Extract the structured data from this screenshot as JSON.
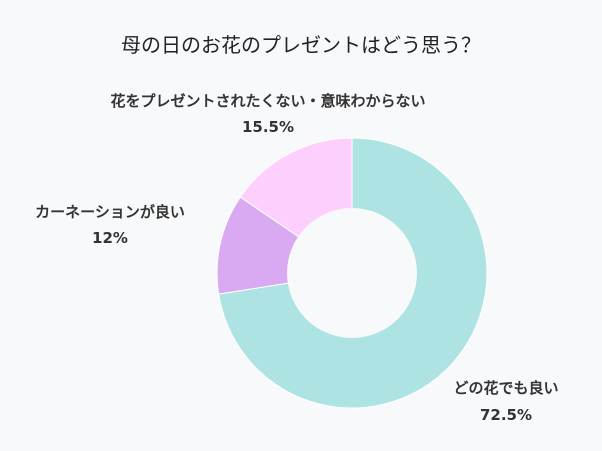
{
  "chart_data": {
    "type": "pie",
    "title": "母の日のお花のプレゼントはどう思う？",
    "slices": [
      {
        "label": "どの花でも良い",
        "value": 72.5,
        "value_label": "72.5%",
        "color": "#ade3e2"
      },
      {
        "label": "カーネーションが良い",
        "value": 12,
        "value_label": "12%",
        "color": "#d9aaf1"
      },
      {
        "label": "花をプレゼントされたくない・意味わからない",
        "value": 15.5,
        "value_label": "15.5%",
        "color": "#fdcffd"
      }
    ],
    "donut": true,
    "start": "top",
    "direction": "clockwise"
  }
}
